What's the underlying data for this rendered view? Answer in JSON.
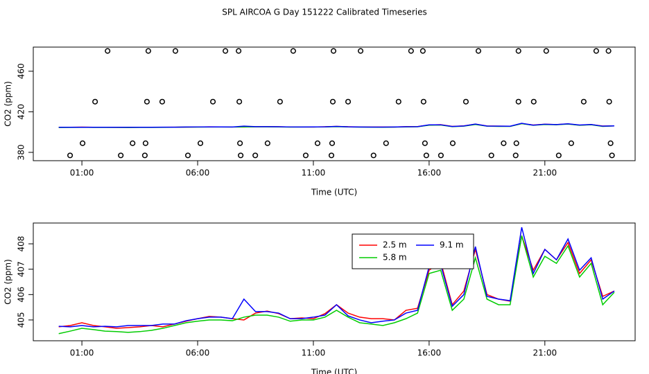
{
  "title": "SPL AIRCOA G  Day 151222  Calibrated Timeseries",
  "chart_data": [
    {
      "type": "scatter",
      "xlabel": "Time (UTC)",
      "ylabel": "CO2 (ppm)",
      "color": "#000000",
      "xlim": [
        -1.1,
        24.9
      ],
      "ylim": [
        371.8,
        483.8
      ],
      "yticks": [
        380,
        420,
        460
      ],
      "xticks": [
        {
          "value": 1,
          "label": "01:00"
        },
        {
          "value": 6,
          "label": "06:00"
        },
        {
          "value": 11,
          "label": "11:00"
        },
        {
          "value": 16,
          "label": "16:00"
        },
        {
          "value": 21,
          "label": "21:00"
        }
      ],
      "x": [
        2.11,
        3.87,
        5.04,
        7.2,
        7.77,
        10.13,
        11.87,
        13.04,
        15.22,
        15.73,
        18.13,
        19.86,
        21.06,
        23.22,
        23.75,
        1.57,
        3.81,
        4.47,
        6.66,
        7.8,
        9.56,
        11.84,
        12.5,
        14.68,
        15.76,
        17.59,
        19.86,
        20.52,
        22.68,
        23.78,
        1.03,
        3.19,
        3.75,
        6.12,
        7.83,
        9.02,
        11.18,
        11.81,
        14.14,
        15.82,
        17.02,
        19.22,
        19.77,
        22.14,
        23.84,
        0.49,
        2.68,
        3.72,
        5.58,
        7.86,
        8.49,
        10.67,
        11.78,
        13.6,
        15.88,
        16.51,
        18.69,
        19.74,
        21.6,
        23.9
      ],
      "values": [
        480,
        480,
        480,
        480,
        480,
        480,
        480,
        480,
        480,
        480,
        480,
        480,
        480,
        480,
        480,
        430,
        430,
        430,
        430,
        430,
        430,
        430,
        430,
        430,
        430,
        430,
        430,
        430,
        430,
        430,
        389,
        389,
        389,
        389,
        389,
        389,
        389,
        389,
        389,
        389,
        389,
        389,
        389,
        389,
        389,
        377,
        377,
        377,
        377,
        377,
        377,
        377,
        377,
        377,
        377,
        377,
        377,
        377,
        377,
        377
      ]
    },
    {
      "type": "line",
      "xlabel": "Time (UTC)",
      "ylabel": "CO2 (ppm)",
      "legend": "top",
      "xlim": [
        -1.1,
        24.9
      ],
      "ylim": [
        404.18,
        408.82
      ],
      "yticks": [
        405,
        406,
        407,
        408
      ],
      "xticks": [
        {
          "value": 1,
          "label": "01:00"
        },
        {
          "value": 6,
          "label": "06:00"
        },
        {
          "value": 11,
          "label": "11:00"
        },
        {
          "value": 16,
          "label": "16:00"
        },
        {
          "value": 21,
          "label": "21:00"
        }
      ],
      "x": [
        0,
        0.5,
        1,
        1.5,
        2,
        2.5,
        3,
        3.5,
        4,
        4.5,
        5,
        5.5,
        6,
        6.5,
        7,
        7.5,
        8,
        8.5,
        9,
        9.5,
        10,
        10.5,
        11,
        11.5,
        12,
        12.5,
        13,
        13.5,
        14,
        14.5,
        15,
        15.5,
        16,
        16.5,
        17,
        17.5,
        18,
        18.5,
        19,
        19.5,
        20,
        20.5,
        21,
        21.5,
        22,
        22.5,
        23,
        23.5,
        24
      ],
      "series": [
        {
          "name": "2.5 m",
          "color": "#ff0000",
          "values": [
            404.73,
            404.78,
            404.89,
            404.78,
            404.73,
            404.67,
            404.7,
            404.73,
            404.78,
            404.73,
            404.84,
            404.95,
            405.05,
            405.14,
            405.11,
            405.05,
            405.0,
            405.27,
            405.35,
            405.25,
            405.05,
            405.08,
            405.05,
            405.25,
            405.6,
            405.27,
            405.11,
            405.05,
            405.05,
            405.0,
            405.38,
            405.46,
            406.96,
            407.29,
            405.6,
            406.14,
            407.78,
            406.0,
            405.82,
            405.74,
            408.32,
            406.96,
            407.78,
            407.37,
            408.05,
            406.83,
            407.37,
            405.93,
            406.14
          ]
        },
        {
          "name": "5.8 m",
          "color": "#00cc00",
          "values": [
            404.46,
            404.56,
            404.67,
            404.62,
            404.56,
            404.54,
            404.51,
            404.54,
            404.59,
            404.67,
            404.78,
            404.89,
            404.95,
            405.0,
            405.0,
            404.97,
            405.11,
            405.19,
            405.19,
            405.11,
            404.95,
            405.0,
            405.0,
            405.11,
            405.38,
            405.11,
            404.89,
            404.84,
            404.78,
            404.89,
            405.05,
            405.27,
            406.83,
            406.96,
            405.38,
            405.82,
            407.45,
            405.82,
            405.6,
            405.6,
            408.32,
            406.69,
            407.51,
            407.23,
            407.92,
            406.69,
            407.23,
            405.6,
            406.09
          ]
        },
        {
          "name": "9.1 m",
          "color": "#0000ff",
          "values": [
            404.75,
            404.73,
            404.78,
            404.73,
            404.75,
            404.73,
            404.78,
            404.78,
            404.78,
            404.84,
            404.84,
            404.97,
            405.05,
            405.11,
            405.11,
            405.05,
            405.82,
            405.33,
            405.33,
            405.27,
            405.05,
            405.05,
            405.11,
            405.19,
            405.6,
            405.16,
            405.0,
            404.89,
            404.95,
            405.0,
            405.27,
            405.38,
            407.1,
            407.18,
            405.54,
            406.0,
            407.89,
            405.93,
            405.82,
            405.76,
            408.65,
            406.83,
            407.78,
            407.37,
            408.19,
            406.96,
            407.45,
            405.82,
            406.14
          ]
        }
      ]
    }
  ]
}
